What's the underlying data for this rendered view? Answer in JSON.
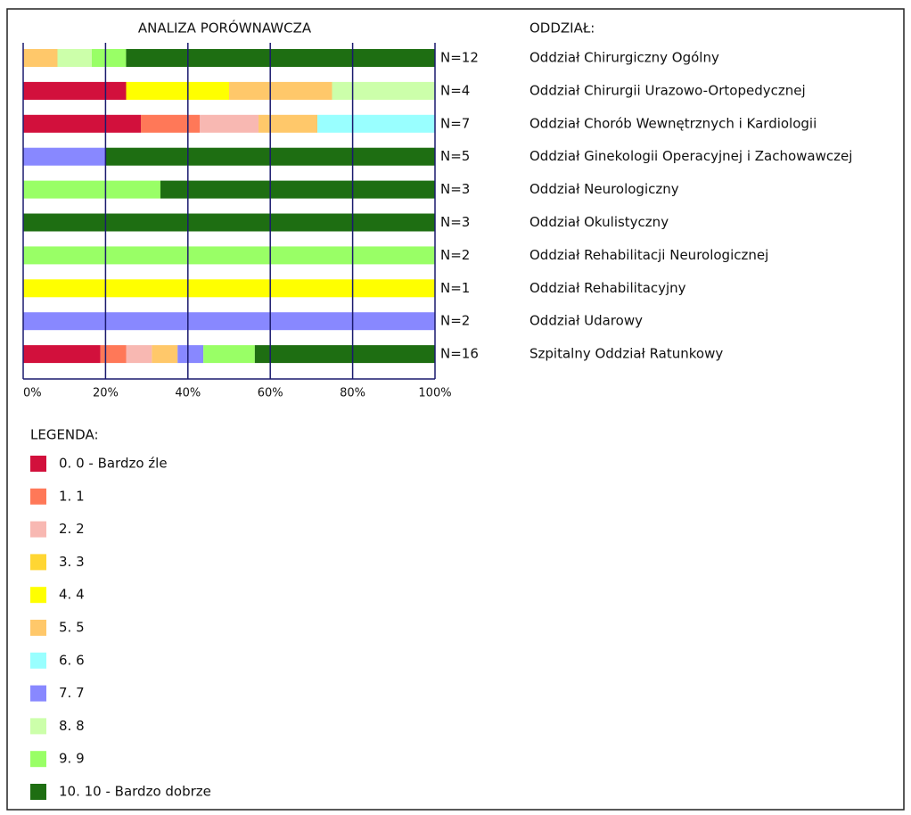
{
  "chart_data": {
    "type": "stacked_barh",
    "title": "ANALIZA  PORÓWNAWCZA",
    "category_header": "ODDZIAŁ:",
    "legend_title": "LEGENDA:",
    "categories": [
      "Oddział Chirurgiczny Ogólny",
      "Oddział Chirurgii Urazowo-Ortopedycznej",
      "Oddział Chorób Wewnętrznych i Kardiologii",
      "Oddział Ginekologii Operacyjnej i Zachowawczej",
      "Oddział Neurologiczny",
      "Oddział Okulistyczny",
      "Oddział Rehabilitacji Neurologicznej",
      "Oddział Rehabilitacyjny",
      "Oddział Udarowy",
      "Szpitalny Oddział Ratunkowy"
    ],
    "n_labels": [
      "N=12",
      "N=4",
      "N=7",
      "N=5",
      "N=3",
      "N=3",
      "N=2",
      "N=1",
      "N=2",
      "N=16"
    ],
    "xlim": [
      0,
      100
    ],
    "xticks": [
      {
        "value": 0,
        "label": "0%"
      },
      {
        "value": 20,
        "label": "20%"
      },
      {
        "value": 40,
        "label": "40%"
      },
      {
        "value": 60,
        "label": "60%"
      },
      {
        "value": 80,
        "label": "80%"
      },
      {
        "value": 100,
        "label": "100%"
      }
    ],
    "grid": true,
    "series": [
      {
        "name": "0. 0 - Bardzo źle",
        "color": "#d2103c",
        "values": [
          null,
          25,
          28.57,
          null,
          null,
          null,
          null,
          null,
          null,
          18.75
        ]
      },
      {
        "name": "1. 1",
        "color": "#ff7858",
        "values": [
          null,
          null,
          14.29,
          null,
          null,
          null,
          null,
          null,
          null,
          6.25
        ]
      },
      {
        "name": "2. 2",
        "color": "#f8b8b2",
        "values": [
          null,
          null,
          14.29,
          null,
          null,
          null,
          null,
          null,
          null,
          6.25
        ]
      },
      {
        "name": "3. 3",
        "color": "#ffd633",
        "values": [
          null,
          null,
          null,
          null,
          null,
          null,
          null,
          null,
          null,
          null
        ]
      },
      {
        "name": "4. 4",
        "color": "#ffff00",
        "values": [
          null,
          25,
          null,
          null,
          null,
          null,
          null,
          100,
          null,
          null
        ]
      },
      {
        "name": "5. 5",
        "color": "#ffc86a",
        "values": [
          8.33,
          25,
          14.29,
          null,
          null,
          null,
          null,
          null,
          null,
          6.25
        ]
      },
      {
        "name": "6. 6",
        "color": "#99ffff",
        "values": [
          null,
          null,
          28.57,
          null,
          null,
          null,
          null,
          null,
          null,
          null
        ]
      },
      {
        "name": "7. 7",
        "color": "#8888ff",
        "values": [
          null,
          null,
          null,
          20,
          null,
          null,
          null,
          null,
          100,
          6.25
        ]
      },
      {
        "name": "8. 8",
        "color": "#ccffaa",
        "values": [
          8.33,
          25,
          null,
          null,
          null,
          null,
          null,
          null,
          null,
          null
        ]
      },
      {
        "name": "9. 9",
        "color": "#99ff66",
        "values": [
          8.33,
          null,
          null,
          null,
          33.33,
          null,
          100,
          null,
          null,
          12.5
        ]
      },
      {
        "name": "10. 10 - Bardzo dobrze",
        "color": "#1e6e12",
        "values": [
          75,
          null,
          null,
          80,
          66.67,
          100,
          null,
          null,
          null,
          43.75
        ]
      }
    ]
  }
}
